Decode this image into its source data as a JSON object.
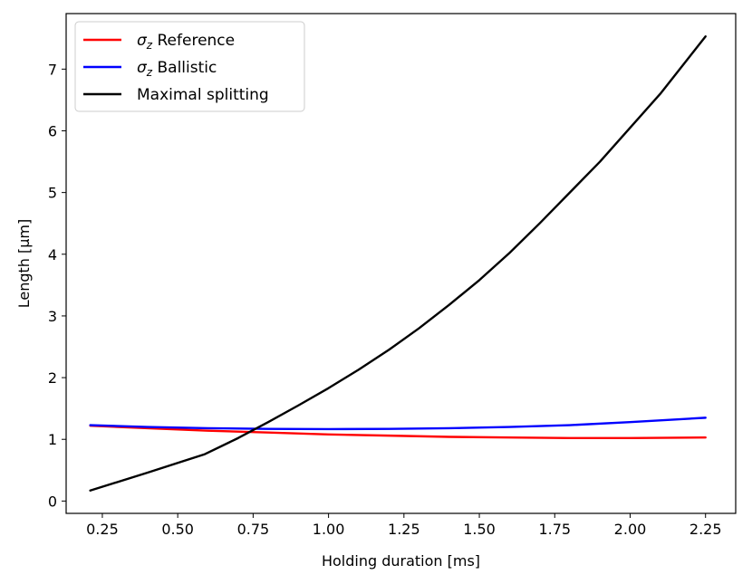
{
  "chart_data": {
    "type": "line",
    "xlabel": "Holding duration [ms]",
    "ylabel": "Length [μm]",
    "xlim": [
      0.13,
      2.35
    ],
    "ylim": [
      -0.2,
      7.9
    ],
    "xticks": [
      0.25,
      0.5,
      0.75,
      1.0,
      1.25,
      1.5,
      1.75,
      2.0,
      2.25
    ],
    "xtick_labels": [
      "0.25",
      "0.50",
      "0.75",
      "1.00",
      "1.25",
      "1.50",
      "1.75",
      "2.00",
      "2.25"
    ],
    "yticks": [
      0,
      1,
      2,
      3,
      4,
      5,
      6,
      7
    ],
    "ytick_labels": [
      "0",
      "1",
      "2",
      "3",
      "4",
      "5",
      "6",
      "7"
    ],
    "grid": false,
    "legend_position": "top-left",
    "series": [
      {
        "name": "σz Reference",
        "name_symbol": "σ",
        "name_sub": "z",
        "name_rest": " Reference",
        "color": "#ff0000",
        "x": [
          0.21,
          0.4,
          0.6,
          0.8,
          1.0,
          1.2,
          1.4,
          1.6,
          1.8,
          2.0,
          2.25
        ],
        "y": [
          1.22,
          1.18,
          1.14,
          1.11,
          1.08,
          1.06,
          1.04,
          1.03,
          1.02,
          1.02,
          1.03
        ]
      },
      {
        "name": "σz Ballistic",
        "name_symbol": "σ",
        "name_sub": "z",
        "name_rest": " Ballistic",
        "color": "#0000ff",
        "x": [
          0.21,
          0.4,
          0.6,
          0.8,
          1.0,
          1.2,
          1.4,
          1.6,
          1.8,
          2.0,
          2.25
        ],
        "y": [
          1.23,
          1.2,
          1.18,
          1.17,
          1.165,
          1.17,
          1.18,
          1.2,
          1.23,
          1.28,
          1.35
        ]
      },
      {
        "name": "Maximal splitting",
        "color": "#000000",
        "x": [
          0.21,
          0.4,
          0.59,
          0.7,
          0.8,
          0.9,
          1.0,
          1.1,
          1.2,
          1.3,
          1.4,
          1.5,
          1.6,
          1.7,
          1.8,
          1.9,
          2.0,
          2.1,
          2.25
        ],
        "y": [
          0.17,
          0.46,
          0.76,
          1.02,
          1.28,
          1.55,
          1.83,
          2.13,
          2.45,
          2.8,
          3.18,
          3.58,
          4.02,
          4.5,
          5.0,
          5.5,
          6.05,
          6.6,
          7.53
        ]
      }
    ]
  }
}
